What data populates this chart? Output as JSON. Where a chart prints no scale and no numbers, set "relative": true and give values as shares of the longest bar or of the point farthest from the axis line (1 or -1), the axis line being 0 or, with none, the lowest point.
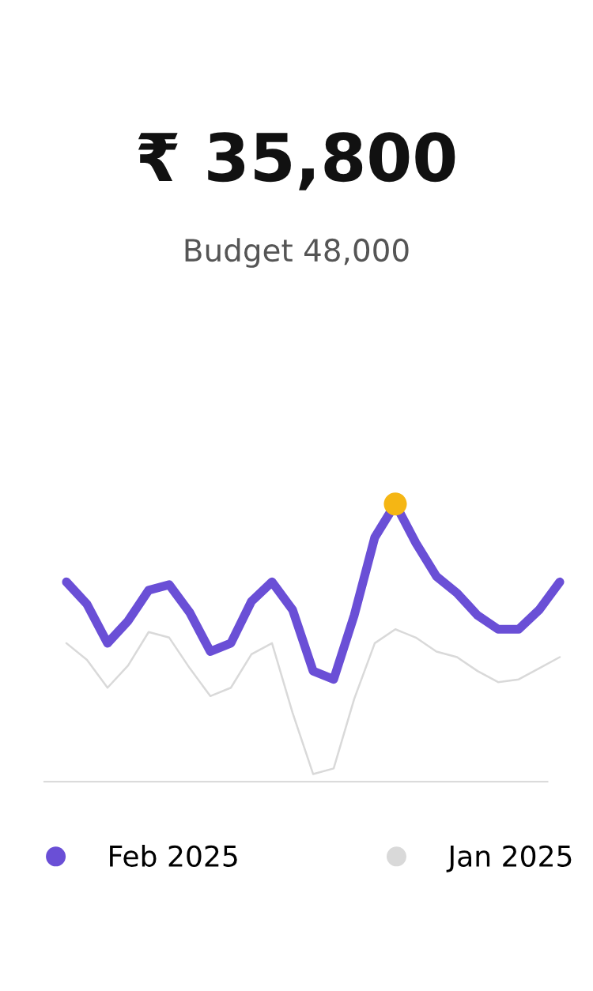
{
  "chart_data": {
    "type": "line",
    "title": "₹ 35,800",
    "subtitle": "Budget 48,000",
    "relative": true,
    "legend": "bottom",
    "line_style": "solid",
    "categories": [
      null,
      null,
      null,
      null,
      null,
      null,
      null,
      null,
      null,
      null,
      null,
      null,
      null,
      null,
      null,
      null,
      null,
      null,
      null,
      null,
      null,
      null,
      null,
      null,
      null
    ],
    "series": [
      {
        "name": "Feb 2025",
        "color": "#6a4fd6",
        "values": [
          0.72,
          0.64,
          0.5,
          0.58,
          0.69,
          0.71,
          0.61,
          0.47,
          0.5,
          0.65,
          0.72,
          0.62,
          0.4,
          0.37,
          0.6,
          0.88,
          1.0,
          0.86,
          0.74,
          0.68,
          0.6,
          0.55,
          0.55,
          0.62,
          0.72
        ]
      },
      {
        "name": "Jan 2025",
        "color": "#d9d9d9",
        "values": [
          0.5,
          0.44,
          0.34,
          0.42,
          0.54,
          0.52,
          0.41,
          0.31,
          0.34,
          0.46,
          0.5,
          0.25,
          0.03,
          0.05,
          0.3,
          0.5,
          0.55,
          0.52,
          0.47,
          0.45,
          0.4,
          0.36,
          0.37,
          0.41,
          0.45
        ]
      }
    ]
  }
}
